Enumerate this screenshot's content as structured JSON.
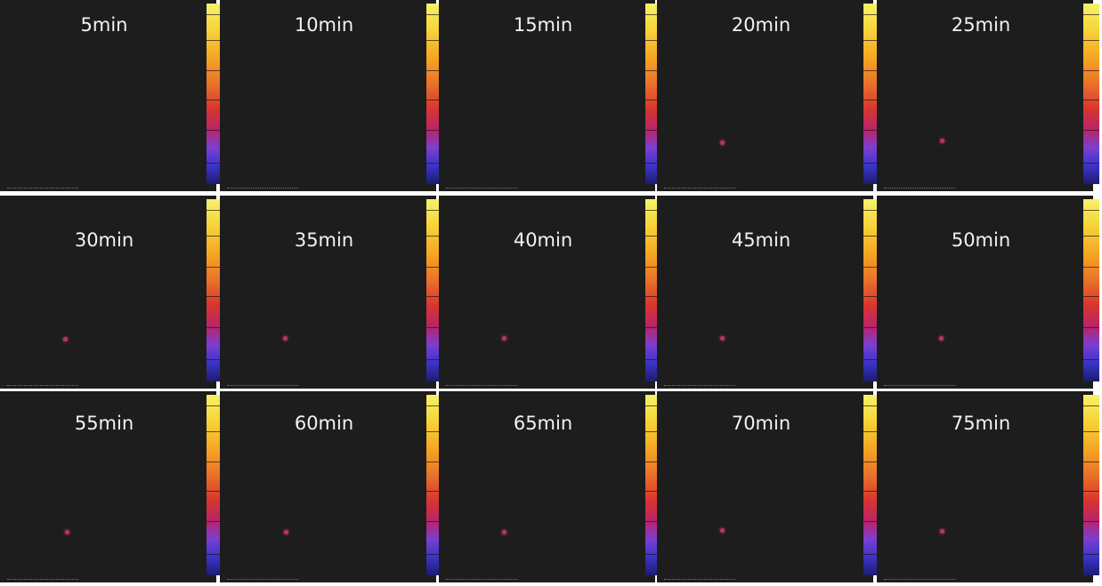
{
  "panels": [
    "5min",
    "10min",
    "15min",
    "20min",
    "25min",
    "30min",
    "35min",
    "40min",
    "45min",
    "50min",
    "55min",
    "60min",
    "65min",
    "70min",
    "75min"
  ]
}
